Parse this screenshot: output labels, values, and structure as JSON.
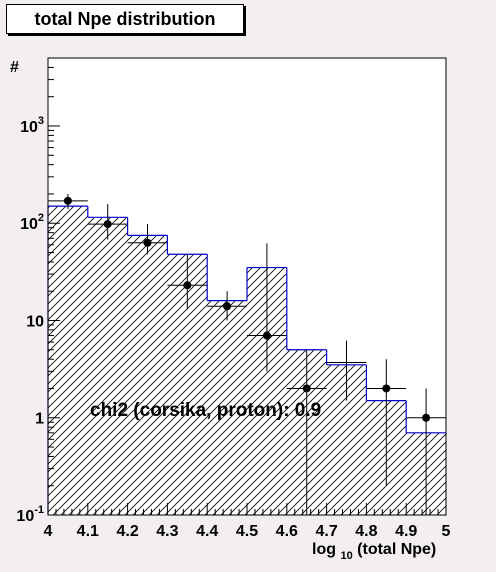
{
  "chart_data": {
    "type": "histogram",
    "title": "total Npe distribution",
    "ylabel": "#",
    "xlabel_main": "log",
    "xlabel_sub": "10",
    "xlabel_rest": "(total Npe)",
    "x_range": [
      4.0,
      5.0
    ],
    "y_range": [
      0.1,
      5000
    ],
    "y_scale": "log",
    "x_ticks": [
      "4",
      "4.1",
      "4.2",
      "4.3",
      "4.4",
      "4.5",
      "4.6",
      "4.7",
      "4.8",
      "4.9",
      "5"
    ],
    "x_tick_values": [
      4.0,
      4.1,
      4.2,
      4.3,
      4.4,
      4.5,
      4.6,
      4.7,
      4.8,
      4.9,
      5.0
    ],
    "y_tick_values": [
      0.1,
      1,
      10,
      100,
      1000
    ],
    "y_tick_labels": {
      "t0": {
        "base": "10",
        "exp": "-1"
      },
      "t1": {
        "base": "1",
        "exp": ""
      },
      "t2": {
        "base": "10",
        "exp": ""
      },
      "t3": {
        "base": "10",
        "exp": "2"
      },
      "t4": {
        "base": "10",
        "exp": "3"
      }
    },
    "annotation": "chi2 (corsika, proton): 0.9",
    "histogram": {
      "name": "corsika",
      "bin_edges": [
        4.0,
        4.1,
        4.2,
        4.3,
        4.4,
        4.5,
        4.6,
        4.7,
        4.8,
        4.9,
        5.0
      ],
      "values": [
        150,
        115,
        75,
        48,
        16,
        35,
        5,
        3.5,
        1.5,
        0.7
      ],
      "line_color": "#0000cc",
      "fill": "hatched"
    },
    "data_points": {
      "name": "proton",
      "x": [
        4.05,
        4.15,
        4.25,
        4.35,
        4.45,
        4.55,
        4.65,
        4.75,
        4.85,
        4.95
      ],
      "y": [
        170,
        98,
        63,
        23,
        14,
        7,
        2,
        3.7,
        2,
        1
      ],
      "err_low": [
        30,
        30,
        15,
        10,
        4,
        4,
        1.9,
        2.2,
        1.8,
        0.98
      ],
      "err_high": [
        30,
        60,
        35,
        25,
        6,
        55,
        3,
        2.5,
        2,
        1
      ],
      "show_marker": [
        true,
        true,
        true,
        true,
        true,
        true,
        true,
        false,
        true,
        true
      ],
      "color": "#000000"
    }
  }
}
